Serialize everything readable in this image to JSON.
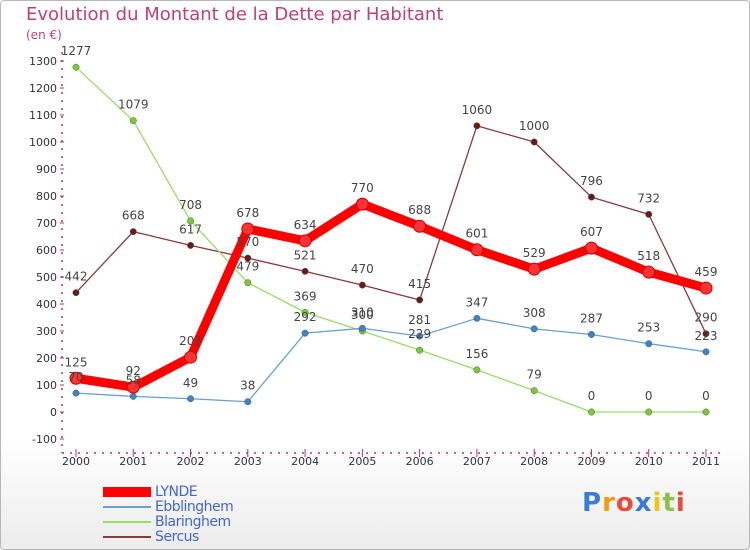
{
  "title": "Evolution du Montant de la Dette par Habitant",
  "unit_label": "(en €)",
  "logo": {
    "letters": [
      "P",
      "r",
      "o",
      "x",
      "i",
      "t",
      "i"
    ],
    "colors": [
      "#3a7bd5",
      "#f39c12",
      "#e74c3c",
      "#3a7bd5",
      "#f1c40f",
      "#8bc34a",
      "#e74c3c"
    ]
  },
  "chart_data": {
    "type": "line",
    "title": "Evolution du Montant de la Dette par Habitant",
    "ylabel": "(en €)",
    "ylim": [
      -100,
      1300
    ],
    "yticks": [
      -100,
      0,
      100,
      200,
      300,
      400,
      500,
      600,
      700,
      800,
      900,
      1000,
      1100,
      1200,
      1300
    ],
    "categories": [
      "2000",
      "2001",
      "2002",
      "2003",
      "2004",
      "2005",
      "2006",
      "2007",
      "2008",
      "2009",
      "2010",
      "2011"
    ],
    "grid": false,
    "legend_position": "bottom-left",
    "series": [
      {
        "name": "LYNDE",
        "color": "#ff0000",
        "point_color": "#ff3333",
        "values": [
          125,
          92,
          203,
          678,
          634,
          770,
          688,
          601,
          529,
          607,
          518,
          459
        ],
        "labels": [
          "125",
          "92",
          "203",
          "678",
          "634",
          "770",
          "688",
          "601",
          "529",
          "607",
          "518",
          "459"
        ]
      },
      {
        "name": "Ebblinghem",
        "color": "#6a9fd0",
        "point_color": "#3d85c6",
        "values": [
          70,
          58,
          49,
          38,
          292,
          310,
          281,
          347,
          308,
          287,
          253,
          223
        ],
        "labels": [
          "70",
          "58",
          "49",
          "38",
          "292",
          "310",
          "281",
          "347",
          "308",
          "287",
          "253",
          "223"
        ]
      },
      {
        "name": "Blaringhem",
        "color": "#99dd66",
        "point_color": "#77cc33",
        "values": [
          1277,
          1079,
          708,
          479,
          369,
          300,
          229,
          156,
          79,
          0,
          0,
          0
        ],
        "labels": [
          "1277",
          "1079",
          "708",
          "479",
          "369",
          "300",
          "229",
          "156",
          "79",
          "0",
          "0",
          "0"
        ]
      },
      {
        "name": "Sercus",
        "color": "#8b3a3a",
        "point_color": "#6b1a1a",
        "values": [
          442,
          668,
          617,
          570,
          521,
          470,
          415,
          1060,
          1000,
          796,
          732,
          290
        ],
        "labels": [
          "442",
          "668",
          "617",
          "570",
          "521",
          "470",
          "415",
          "1060",
          "1000",
          "796",
          "732",
          "290"
        ]
      }
    ]
  }
}
